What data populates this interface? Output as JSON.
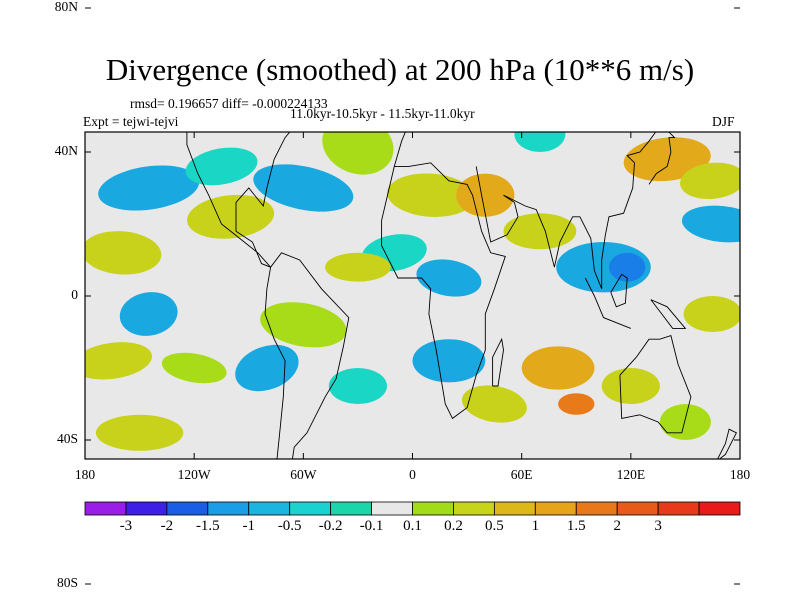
{
  "figure": {
    "title": "Divergence (smoothed) at 200 hPa (10**6 m/s)",
    "stats_line": "rmsd= 0.196657 diff= -0.000224133",
    "period_line": "11.0kyr-10.5kyr - 11.5kyr-11.0kyr",
    "experiment_line": "Expt = tejwi-tejvi",
    "season": "DJF"
  },
  "map": {
    "background_color": "#e8e8e8",
    "lon_ticks": [
      "180",
      "120W",
      "60W",
      "0",
      "60E",
      "120E",
      "180"
    ],
    "lat_ticks": [
      "80N",
      "40N",
      "0",
      "40S",
      "80S"
    ]
  },
  "colorbar": {
    "colors": [
      "#9a1ee8",
      "#3d1fe8",
      "#1a5ee8",
      "#1a9ee8",
      "#1ab6e0",
      "#1ad2d0",
      "#1ad6a8",
      "#e8e8e8",
      "#a2dc18",
      "#c6d41a",
      "#dcb81a",
      "#e6a41a",
      "#e8781a",
      "#e85a1a",
      "#e83a1a",
      "#e81a1a"
    ],
    "labels": [
      "-3",
      "-2",
      "-1.5",
      "-1",
      "-0.5",
      "-0.2",
      "-0.1",
      "0.1",
      "0.2",
      "0.5",
      "1",
      "1.5",
      "2",
      "3"
    ]
  },
  "palette": {
    "neg_strong": "#1aa8e0",
    "neg_weak": "#1ad6c4",
    "neg_core": "#1a7ee8",
    "pos_weak": "#a8dc18",
    "pos_mid": "#c8d21a",
    "pos_strong": "#e2aa1a",
    "pos_core": "#e87a1a"
  }
}
